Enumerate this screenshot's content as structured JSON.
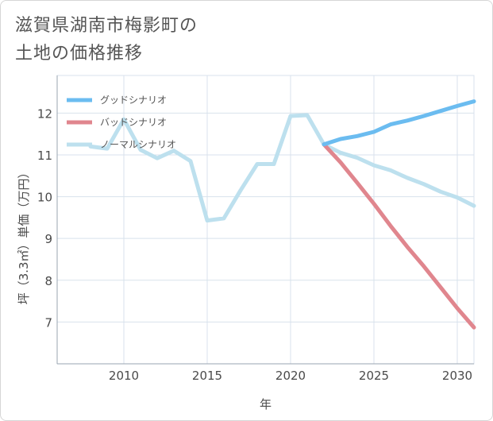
{
  "title_line1": "滋賀県湖南市梅影町の",
  "title_line2": "土地の価格推移",
  "colors": {
    "good": "#6bbcf0",
    "bad": "#e0868e",
    "normal": "#bde0ee",
    "grid": "#d8e2ec",
    "axis": "#9aa5b1"
  },
  "chart_data": {
    "type": "line",
    "xlabel": "年",
    "ylabel": "坪（3.3㎡）単価（万円）",
    "xlim": [
      2006,
      2031
    ],
    "ylim": [
      6,
      12.9
    ],
    "xticks": [
      2010,
      2015,
      2020,
      2025,
      2030
    ],
    "yticks": [
      7,
      8,
      9,
      10,
      11,
      12
    ],
    "grid": true,
    "legend_position": "top-left",
    "series": [
      {
        "name": "グッドシナリオ",
        "color_key": "good",
        "points": [
          [
            2022,
            11.25
          ],
          [
            2023,
            11.38
          ],
          [
            2024,
            11.45
          ],
          [
            2025,
            11.55
          ],
          [
            2026,
            11.73
          ],
          [
            2027,
            11.82
          ],
          [
            2028,
            11.93
          ],
          [
            2029,
            12.05
          ],
          [
            2030,
            12.17
          ],
          [
            2031,
            12.28
          ]
        ]
      },
      {
        "name": "バッドシナリオ",
        "color_key": "bad",
        "points": [
          [
            2022,
            11.25
          ],
          [
            2023,
            10.82
          ],
          [
            2024,
            10.33
          ],
          [
            2025,
            9.83
          ],
          [
            2026,
            9.3
          ],
          [
            2027,
            8.8
          ],
          [
            2028,
            8.33
          ],
          [
            2029,
            7.83
          ],
          [
            2030,
            7.33
          ],
          [
            2031,
            6.87
          ]
        ]
      },
      {
        "name": "ノーマルシナリオ",
        "color_key": "normal",
        "points": [
          [
            2008,
            11.2
          ],
          [
            2009,
            11.15
          ],
          [
            2010,
            11.85
          ],
          [
            2011,
            11.12
          ],
          [
            2012,
            10.92
          ],
          [
            2013,
            11.1
          ],
          [
            2014,
            10.85
          ],
          [
            2015,
            9.43
          ],
          [
            2016,
            9.48
          ],
          [
            2017,
            10.15
          ],
          [
            2018,
            10.78
          ],
          [
            2019,
            10.78
          ],
          [
            2020,
            11.93
          ],
          [
            2021,
            11.95
          ],
          [
            2022,
            11.25
          ],
          [
            2023,
            11.05
          ],
          [
            2024,
            10.93
          ],
          [
            2025,
            10.75
          ],
          [
            2026,
            10.63
          ],
          [
            2027,
            10.45
          ],
          [
            2028,
            10.3
          ],
          [
            2029,
            10.12
          ],
          [
            2030,
            9.98
          ],
          [
            2031,
            9.78
          ]
        ]
      }
    ]
  }
}
